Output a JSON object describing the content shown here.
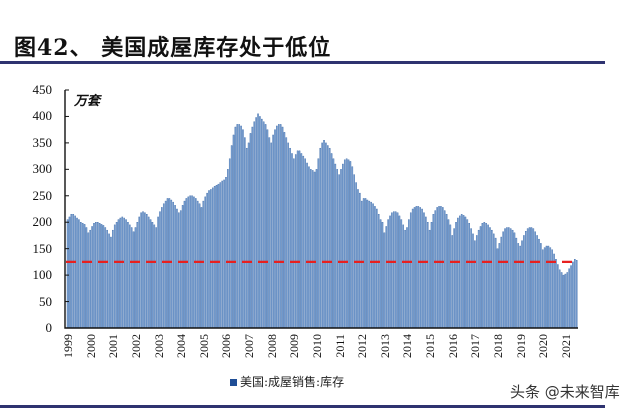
{
  "header": {
    "title": "图42、 美国成屋库存处于低位"
  },
  "watermark": "头条 @未来智库",
  "legend": {
    "label": "美国:成屋销售:库存",
    "color": "#1f4e96"
  },
  "chart_data": {
    "type": "bar",
    "title": "图42、 美国成屋库存处于低位",
    "xlabel": "",
    "ylabel": "万套",
    "unit_label": "万套",
    "ylim": [
      0,
      450
    ],
    "yticks": [
      0,
      50,
      100,
      150,
      200,
      250,
      300,
      350,
      400,
      450
    ],
    "xtick_labels": [
      "1999",
      "2000",
      "2001",
      "2002",
      "2003",
      "2004",
      "2005",
      "2006",
      "2007",
      "2008",
      "2009",
      "2010",
      "2011",
      "2012",
      "2013",
      "2014",
      "2015",
      "2016",
      "2017",
      "2018",
      "2019",
      "2020",
      "2021"
    ],
    "grid": false,
    "legend_position": "bottom",
    "reference_line": {
      "value": 125,
      "style": "dashed",
      "color": "#e8201f"
    },
    "bar_color": "#7fa6d6",
    "bar_edge_color": "#3d6aa8",
    "series": [
      {
        "name": "美国:成屋销售:库存",
        "frequency": "monthly",
        "start": "1999-01",
        "yearly_values": {
          "1999": [
            205,
            210,
            215,
            215,
            212,
            208,
            205,
            200,
            198,
            196,
            190,
            180
          ],
          "2000": [
            185,
            192,
            198,
            200,
            200,
            198,
            196,
            194,
            190,
            185,
            178,
            172
          ],
          "2001": [
            185,
            195,
            200,
            205,
            208,
            210,
            208,
            205,
            200,
            195,
            190,
            182
          ],
          "2002": [
            190,
            200,
            210,
            218,
            220,
            218,
            215,
            210,
            205,
            200,
            195,
            190
          ],
          "2003": [
            210,
            220,
            228,
            235,
            240,
            245,
            245,
            242,
            238,
            232,
            225,
            218
          ],
          "2004": [
            222,
            232,
            240,
            245,
            248,
            250,
            250,
            248,
            245,
            240,
            235,
            228
          ],
          "2005": [
            240,
            248,
            255,
            260,
            262,
            265,
            268,
            270,
            272,
            275,
            278,
            280
          ],
          "2006": [
            285,
            300,
            320,
            345,
            365,
            380,
            385,
            385,
            382,
            375,
            360,
            340
          ],
          "2007": [
            350,
            368,
            380,
            390,
            398,
            405,
            400,
            395,
            390,
            385,
            375,
            360
          ],
          "2008": [
            350,
            365,
            375,
            382,
            385,
            385,
            380,
            370,
            360,
            350,
            340,
            330
          ],
          "2009": [
            320,
            328,
            335,
            335,
            330,
            325,
            320,
            312,
            305,
            300,
            298,
            295
          ],
          "2010": [
            300,
            320,
            340,
            350,
            355,
            350,
            345,
            340,
            330,
            320,
            310,
            300
          ],
          "2011": [
            290,
            300,
            310,
            318,
            320,
            318,
            315,
            305,
            290,
            275,
            262,
            255
          ],
          "2012": [
            240,
            245,
            245,
            242,
            240,
            238,
            235,
            230,
            225,
            215,
            205,
            200
          ],
          "2013": [
            180,
            192,
            205,
            212,
            218,
            220,
            220,
            218,
            212,
            205,
            195,
            185
          ],
          "2014": [
            190,
            205,
            218,
            225,
            228,
            230,
            230,
            228,
            225,
            218,
            210,
            200
          ],
          "2015": [
            185,
            200,
            215,
            222,
            228,
            230,
            230,
            228,
            222,
            215,
            205,
            195
          ],
          "2016": [
            175,
            188,
            200,
            208,
            212,
            215,
            213,
            210,
            205,
            198,
            188,
            178
          ],
          "2017": [
            165,
            175,
            185,
            192,
            198,
            200,
            198,
            195,
            190,
            185,
            178,
            170
          ],
          "2018": [
            150,
            160,
            172,
            182,
            188,
            190,
            190,
            188,
            185,
            180,
            170,
            160
          ],
          "2019": [
            155,
            165,
            175,
            183,
            188,
            190,
            190,
            188,
            182,
            175,
            168,
            160
          ],
          "2020": [
            148,
            152,
            155,
            155,
            152,
            148,
            140,
            130,
            120,
            110,
            105,
            100
          ],
          "2021": [
            102,
            105,
            112,
            118,
            125,
            130,
            128
          ]
        }
      }
    ]
  }
}
